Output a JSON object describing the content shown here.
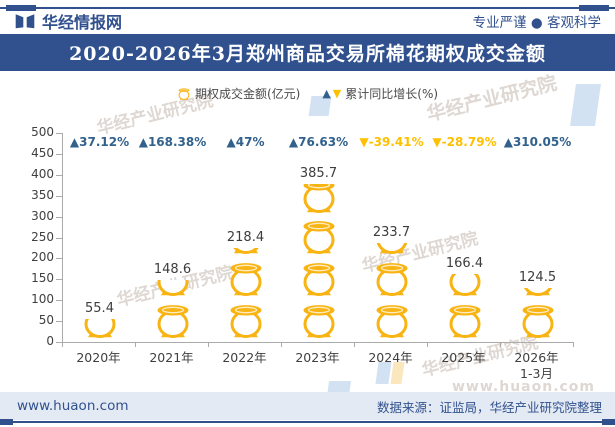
{
  "header": {
    "brand": "华经情报网",
    "slogan": "专业严谨 ● 客观科学"
  },
  "title_bar": {
    "title": "2020-2026年3月郑州商品交易所棉花期权成交金额"
  },
  "legend": {
    "bar_label": "期权成交金额(亿元)",
    "growth_label": "累计同比增长(%)",
    "up_symbol": "▲",
    "down_symbol": "▼"
  },
  "chart_data": {
    "type": "bar",
    "subtype": "pictorial-bar-gold-pot",
    "title": "2020-2026年3月郑州商品交易所棉花期权成交金额",
    "categories": [
      "2020年",
      "2021年",
      "2022年",
      "2023年",
      "2024年",
      "2025年",
      "2026年\n1-3月"
    ],
    "series": [
      {
        "name": "期权成交金额(亿元)",
        "type": "bar",
        "values": [
          55.4,
          148.6,
          218.4,
          385.7,
          233.7,
          166.4,
          124.5
        ]
      },
      {
        "name": "累计同比增长(%)",
        "type": "growth-markers",
        "values": [
          37.12,
          168.38,
          47,
          76.63,
          -39.41,
          -28.79,
          310.05
        ],
        "labels": [
          "37.12%",
          "168.38%",
          "47%",
          "76.63%",
          "-39.41%",
          "-28.79%",
          "310.05%"
        ]
      }
    ],
    "ylim": [
      0,
      500
    ],
    "ytick_step": 50,
    "unit_per_icon": 100,
    "grid": false,
    "legend_position": "top-center"
  },
  "colors": {
    "primary": "#31518E",
    "gold": "#F8B412",
    "positive": "#31618C",
    "negative": "#FFC000",
    "axis": "#ABABAB",
    "text": "#404040",
    "footer_bg": "#E3EAF3"
  },
  "watermark": {
    "text": "华经产业研究院",
    "url": "www.huaon.com"
  },
  "footer": {
    "site": "www.huaon.com",
    "source": "数据来源：证监局，华经产业研究院整理"
  }
}
